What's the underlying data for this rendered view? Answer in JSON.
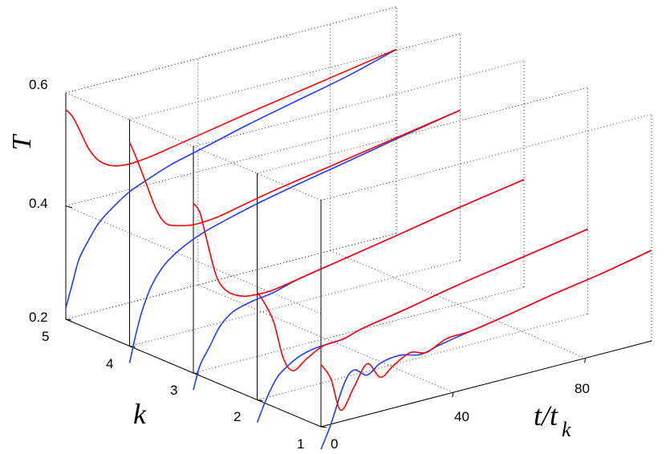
{
  "chart_data": {
    "type": "line",
    "view": "3d-waterfall",
    "grid": true,
    "axes": {
      "z": {
        "label": "T",
        "ticks": [
          "0.2",
          "0.4",
          "0.6"
        ],
        "range": [
          0.2,
          0.6
        ]
      },
      "k": {
        "label": "k",
        "ticks": [
          "1",
          "2",
          "3",
          "4",
          "5"
        ],
        "range": [
          1,
          5
        ]
      },
      "t": {
        "label": "t/t",
        "label_subscript": "k",
        "ticks": [
          "0",
          "40",
          "80"
        ],
        "range": [
          0,
          100
        ]
      }
    },
    "series_colors": {
      "red": "#ff0000",
      "blue": "#1f3dff"
    },
    "slices": [
      {
        "k": 1,
        "t_end": 100,
        "red": [
          [
            0,
            0.31
          ],
          [
            3,
            0.28
          ],
          [
            6,
            0.22
          ],
          [
            10,
            0.255
          ],
          [
            14,
            0.29
          ],
          [
            18,
            0.26
          ],
          [
            22,
            0.275
          ],
          [
            27,
            0.29
          ],
          [
            32,
            0.283
          ],
          [
            38,
            0.298
          ],
          [
            45,
            0.3
          ],
          [
            55,
            0.31
          ],
          [
            70,
            0.327
          ],
          [
            85,
            0.342
          ],
          [
            100,
            0.36
          ]
        ],
        "blue": [
          [
            0,
            0.16
          ],
          [
            3,
            0.2
          ],
          [
            7,
            0.265
          ],
          [
            10,
            0.285
          ],
          [
            14,
            0.27
          ],
          [
            18,
            0.285
          ],
          [
            24,
            0.29
          ],
          [
            30,
            0.282
          ],
          [
            36,
            0.29
          ],
          [
            45,
            0.3
          ],
          [
            55,
            0.31
          ],
          [
            70,
            0.327
          ],
          [
            85,
            0.342
          ],
          [
            100,
            0.36
          ]
        ]
      },
      {
        "k": 2,
        "t_end": 100,
        "red": [
          [
            0,
            0.39
          ],
          [
            2,
            0.37
          ],
          [
            5,
            0.33
          ],
          [
            8,
            0.26
          ],
          [
            11,
            0.235
          ],
          [
            15,
            0.25
          ],
          [
            20,
            0.265
          ],
          [
            26,
            0.268
          ],
          [
            32,
            0.278
          ],
          [
            45,
            0.292
          ],
          [
            60,
            0.31
          ],
          [
            80,
            0.33
          ],
          [
            100,
            0.35
          ]
        ],
        "blue": [
          [
            0,
            0.16
          ],
          [
            3,
            0.2
          ],
          [
            6,
            0.23
          ],
          [
            9,
            0.245
          ],
          [
            13,
            0.258
          ],
          [
            18,
            0.265
          ],
          [
            26,
            0.268
          ],
          [
            32,
            0.278
          ],
          [
            45,
            0.292
          ],
          [
            60,
            0.31
          ],
          [
            80,
            0.33
          ],
          [
            100,
            0.35
          ]
        ]
      },
      {
        "k": 3,
        "t_end": 100,
        "red": [
          [
            0,
            0.5
          ],
          [
            2,
            0.48
          ],
          [
            4,
            0.43
          ],
          [
            7,
            0.36
          ],
          [
            10,
            0.33
          ],
          [
            14,
            0.315
          ],
          [
            18,
            0.31
          ],
          [
            24,
            0.31
          ],
          [
            32,
            0.318
          ],
          [
            45,
            0.332
          ],
          [
            60,
            0.348
          ],
          [
            80,
            0.37
          ],
          [
            100,
            0.39
          ]
        ],
        "blue": [
          [
            0,
            0.17
          ],
          [
            2,
            0.21
          ],
          [
            5,
            0.24
          ],
          [
            8,
            0.27
          ],
          [
            12,
            0.29
          ],
          [
            18,
            0.3
          ],
          [
            24,
            0.305
          ],
          [
            32,
            0.318
          ],
          [
            45,
            0.332
          ],
          [
            60,
            0.348
          ],
          [
            80,
            0.37
          ],
          [
            100,
            0.39
          ]
        ]
      },
      {
        "k": 4,
        "t_end": 100,
        "red": [
          [
            0,
            0.56
          ],
          [
            2,
            0.53
          ],
          [
            5,
            0.48
          ],
          [
            8,
            0.43
          ],
          [
            11,
            0.4
          ],
          [
            15,
            0.39
          ],
          [
            20,
            0.385
          ],
          [
            27,
            0.388
          ],
          [
            35,
            0.398
          ],
          [
            45,
            0.41
          ],
          [
            60,
            0.425
          ],
          [
            80,
            0.445
          ],
          [
            100,
            0.465
          ]
        ],
        "blue": [
          [
            0,
            0.17
          ],
          [
            2,
            0.22
          ],
          [
            4,
            0.26
          ],
          [
            7,
            0.3
          ],
          [
            11,
            0.33
          ],
          [
            16,
            0.35
          ],
          [
            22,
            0.366
          ],
          [
            30,
            0.38
          ],
          [
            40,
            0.395
          ],
          [
            52,
            0.41
          ],
          [
            65,
            0.425
          ],
          [
            82,
            0.445
          ],
          [
            100,
            0.465
          ]
        ]
      },
      {
        "k": 5,
        "t_end": 100,
        "red": [
          [
            0,
            0.57
          ],
          [
            2,
            0.555
          ],
          [
            4,
            0.53
          ],
          [
            7,
            0.49
          ],
          [
            10,
            0.465
          ],
          [
            14,
            0.45
          ],
          [
            19,
            0.445
          ],
          [
            25,
            0.448
          ],
          [
            32,
            0.455
          ],
          [
            42,
            0.466
          ],
          [
            55,
            0.48
          ],
          [
            70,
            0.495
          ],
          [
            85,
            0.51
          ],
          [
            100,
            0.525
          ]
        ],
        "blue": [
          [
            0,
            0.22
          ],
          [
            2,
            0.26
          ],
          [
            4,
            0.3
          ],
          [
            7,
            0.33
          ],
          [
            10,
            0.355
          ],
          [
            14,
            0.375
          ],
          [
            19,
            0.395
          ],
          [
            25,
            0.41
          ],
          [
            32,
            0.425
          ],
          [
            42,
            0.44
          ],
          [
            55,
            0.46
          ],
          [
            70,
            0.48
          ],
          [
            85,
            0.5
          ],
          [
            100,
            0.525
          ]
        ]
      }
    ]
  }
}
